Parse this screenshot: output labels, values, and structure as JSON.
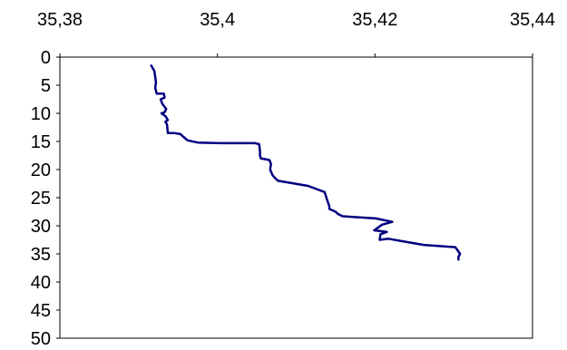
{
  "chart_data": {
    "type": "line",
    "title": "",
    "xlabel": "",
    "ylabel": "",
    "x_axis_position": "top",
    "y_axis_inverted": true,
    "xlim": [
      35.38,
      35.44
    ],
    "ylim": [
      0,
      50
    ],
    "x_ticks": [
      35.38,
      35.4,
      35.42,
      35.44
    ],
    "x_tick_labels": [
      "35,38",
      "35,4",
      "35,42",
      "35,44"
    ],
    "y_ticks": [
      0,
      5,
      10,
      15,
      20,
      25,
      30,
      35,
      40,
      45,
      50
    ],
    "y_tick_labels": [
      "0",
      "5",
      "10",
      "15",
      "20",
      "25",
      "30",
      "35",
      "40",
      "45",
      "50"
    ],
    "grid": false,
    "line_color": "#000080",
    "series": [
      {
        "x": [
          35.3916,
          35.392,
          35.3921,
          35.3922,
          35.3921,
          35.3923,
          35.3932,
          35.3933,
          35.3928,
          35.393,
          35.3935,
          35.3933,
          35.3929,
          35.3934,
          35.3937,
          35.3934,
          35.3936,
          35.3937,
          35.3945,
          35.3953,
          35.3957,
          35.3962,
          35.3975,
          35.4003,
          35.4048,
          35.4053,
          35.4054,
          35.4054,
          35.4055,
          35.4066,
          35.4068,
          35.4067,
          35.407,
          35.4073,
          35.4077,
          35.4115,
          35.4136,
          35.4139,
          35.4142,
          35.4142,
          35.415,
          35.4153,
          35.4159,
          35.4201,
          35.4222,
          35.4209,
          35.4199,
          35.4215,
          35.4207,
          35.4206,
          35.4217,
          35.4237,
          35.4262,
          35.4302,
          35.4306,
          35.4308,
          35.4306,
          35.4306
        ],
        "y": [
          1.5,
          2.5,
          3.5,
          4.5,
          5.5,
          6.5,
          6.5,
          7.2,
          7.5,
          8.3,
          9.2,
          9.8,
          10.0,
          10.5,
          11.2,
          11.5,
          12.0,
          13.5,
          13.5,
          13.7,
          14.2,
          14.8,
          15.2,
          15.3,
          15.3,
          15.5,
          16.8,
          17.5,
          18.0,
          18.3,
          19.0,
          20.0,
          21.0,
          21.5,
          22.0,
          22.9,
          24.0,
          25.3,
          26.5,
          27.0,
          27.5,
          27.9,
          28.3,
          28.7,
          29.3,
          29.8,
          30.8,
          31.1,
          31.5,
          32.5,
          32.3,
          32.8,
          33.4,
          33.8,
          34.6,
          35.0,
          35.5,
          36.0
        ]
      }
    ]
  }
}
